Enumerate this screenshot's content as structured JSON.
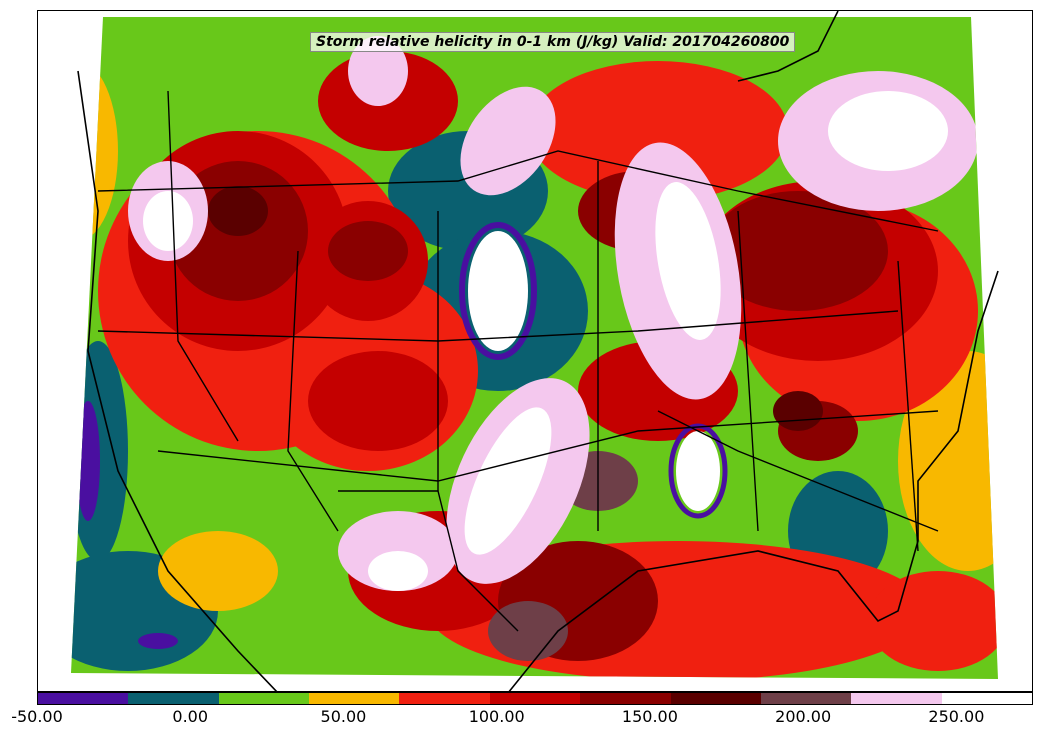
{
  "title": "Storm relative helicity in 0-1 km (J/kg) Valid: 201704260800",
  "colorbar": {
    "colors": [
      "#4a0fa0",
      "#0a6070",
      "#68c81a",
      "#f8b800",
      "#f02010",
      "#c40000",
      "#8a0000",
      "#5a0000",
      "#6e3f48",
      "#f4c8ee",
      "#ffffff"
    ],
    "tick_labels": [
      "-50.00",
      "0.00",
      "50.00",
      "100.00",
      "150.00",
      "200.00",
      "250.00"
    ],
    "range": [
      -50,
      275
    ],
    "step": 25
  }
}
